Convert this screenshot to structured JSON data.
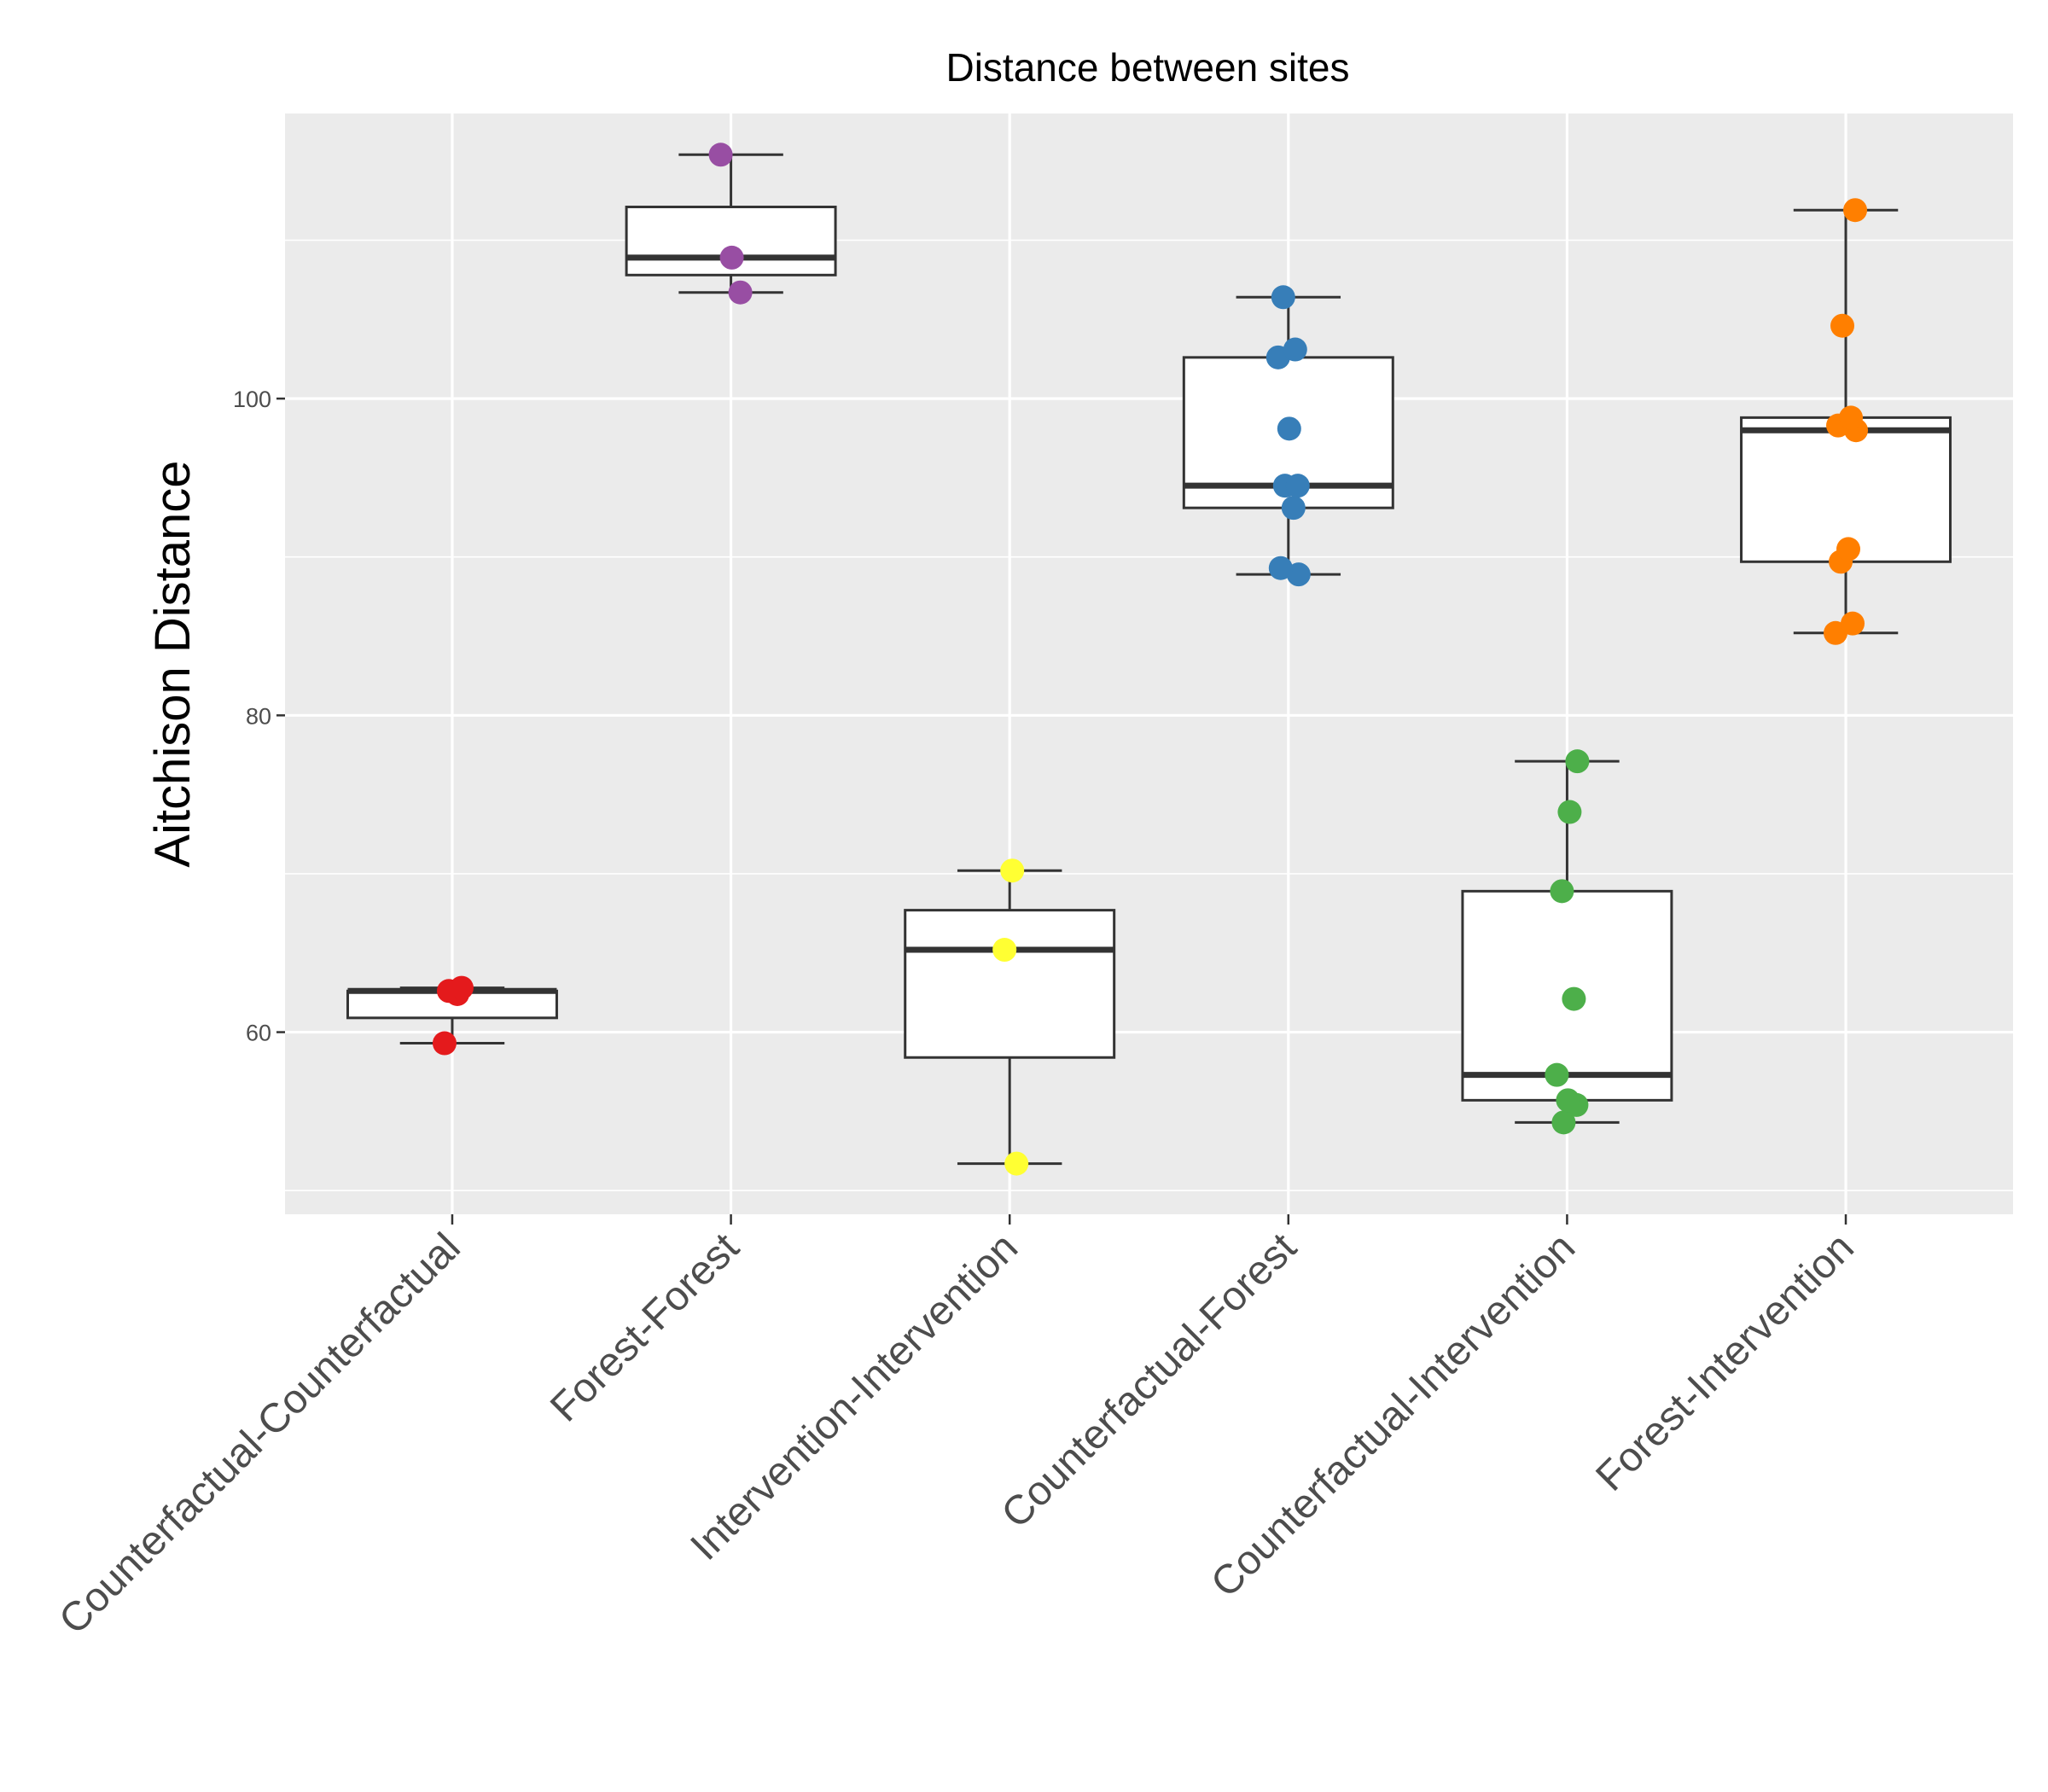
{
  "chart_data": {
    "type": "box",
    "title": "Distance between sites",
    "xlabel": "",
    "ylabel": "Aitchison Distance",
    "ylim": [
      48.5,
      118
    ],
    "yticks": [
      60,
      80,
      100
    ],
    "grid": true,
    "legend": "none",
    "colors": {
      "panel": "#ebebeb",
      "grid": "#ffffff",
      "box_fill": "#ffffff",
      "box_line": "#333333"
    },
    "categories": [
      "Counterfactual-Counterfactual",
      "Forest-Forest",
      "Intervention-Intervention",
      "Counterfactual-Forest",
      "Counterfactual-Intervention",
      "Forest-Intervention"
    ],
    "series": [
      {
        "color": "#e41a1c",
        "box": {
          "min": 59.3,
          "q1": 60.9,
          "median": 62.6,
          "q3": 62.6,
          "max": 62.8
        },
        "points": [
          59.3,
          62.4,
          62.6,
          62.8
        ]
      },
      {
        "color": "#984ea3",
        "box": {
          "min": 106.7,
          "q1": 107.8,
          "median": 108.9,
          "q3": 112.1,
          "max": 115.4
        },
        "points": [
          106.7,
          108.9,
          115.4
        ]
      },
      {
        "color": "#ffff33",
        "box": {
          "min": 51.7,
          "q1": 58.4,
          "median": 65.2,
          "q3": 67.7,
          "max": 70.2
        },
        "points": [
          51.7,
          65.2,
          70.2
        ]
      },
      {
        "color": "#377eb8",
        "box": {
          "min": 88.9,
          "q1": 93.1,
          "median": 94.5,
          "q3": 102.6,
          "max": 106.4
        },
        "points": [
          88.9,
          89.3,
          93.1,
          94.5,
          94.5,
          98.1,
          102.6,
          103.1,
          106.4
        ]
      },
      {
        "color": "#4daf4a",
        "box": {
          "min": 54.3,
          "q1": 55.7,
          "median": 57.3,
          "q3": 68.9,
          "max": 77.1
        },
        "points": [
          54.3,
          55.4,
          55.7,
          57.3,
          62.1,
          68.9,
          73.9,
          77.1
        ]
      },
      {
        "color": "#ff7f00",
        "box": {
          "min": 85.2,
          "q1": 89.7,
          "median": 98.0,
          "q3": 98.8,
          "max": 111.9
        },
        "points": [
          85.2,
          85.8,
          89.7,
          90.5,
          98.0,
          98.3,
          98.8,
          104.6,
          111.9
        ]
      }
    ]
  }
}
